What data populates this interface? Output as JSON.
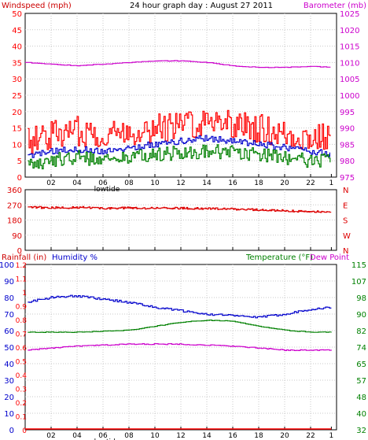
{
  "title": "24 hour graph day : August 27 2011",
  "colors": {
    "wind": "#ff0000",
    "gust_line": "#dd0000",
    "avg": "#0000cc",
    "green": "#008000",
    "baro": "#cc00cc",
    "dir": "#dd0000",
    "hum": "#0000cc",
    "temp": "#008000",
    "dew": "#cc00cc",
    "rain": "#ff0000",
    "grid": "#c8c8c8",
    "frame": "#000000"
  },
  "x_ticks": [
    "02",
    "04",
    "06",
    "08",
    "10",
    "12",
    "14",
    "16",
    "18",
    "20",
    "22",
    "1"
  ],
  "x_marker_label": "lowtide",
  "chart_data": [
    {
      "type": "line",
      "panel": "wind",
      "left_axis_label": "Windspeed (mph)",
      "right_axis_label": "Barometer (mb)",
      "left_ticks": [
        "0",
        "5",
        "10",
        "15",
        "20",
        "25",
        "30",
        "35",
        "40",
        "45",
        "50"
      ],
      "right_ticks": [
        "975",
        "980",
        "985",
        "990",
        "995",
        "1000",
        "1005",
        "1010",
        "1015",
        "1020",
        "1025"
      ],
      "ylim_left": [
        0,
        50
      ],
      "ylim_right": [
        975,
        1025
      ],
      "xlim_hours": [
        0,
        24
      ],
      "series": [
        {
          "key": "gust",
          "axis": "left",
          "x": [
            0,
            2,
            4,
            6,
            8,
            10,
            12,
            14,
            15,
            16,
            18,
            20,
            22,
            23.6
          ],
          "values": [
            11,
            13,
            14,
            13,
            14,
            15,
            16,
            17,
            18,
            16,
            15,
            13,
            12,
            12
          ]
        },
        {
          "key": "avg",
          "axis": "left",
          "x": [
            0,
            2,
            4,
            6,
            8,
            10,
            12,
            14,
            16,
            18,
            20,
            22,
            23.6
          ],
          "values": [
            6,
            8,
            8.5,
            8,
            9,
            10,
            11,
            12,
            11,
            10,
            9,
            8,
            7
          ]
        },
        {
          "key": "low",
          "axis": "left",
          "x": [
            0,
            2,
            4,
            6,
            8,
            10,
            12,
            14,
            16,
            18,
            20,
            22,
            23.6
          ],
          "values": [
            4,
            5,
            6,
            5.5,
            6,
            7,
            7.5,
            8,
            7.5,
            7,
            6,
            5,
            5
          ]
        },
        {
          "key": "baro",
          "axis": "right",
          "x": [
            0,
            2,
            4,
            6,
            8,
            10,
            12,
            14,
            16,
            18,
            20,
            22,
            23.6
          ],
          "values": [
            1010,
            1009.5,
            1009,
            1009.5,
            1010,
            1010.5,
            1010.5,
            1010,
            1009,
            1008.5,
            1008.5,
            1008.8,
            1008.5
          ]
        }
      ]
    },
    {
      "type": "line",
      "panel": "direction",
      "left_ticks": [
        "0",
        "90",
        "180",
        "270",
        "360"
      ],
      "right_ticks": [
        "N",
        "E",
        "S",
        "W",
        "N"
      ],
      "ylim_left": [
        0,
        360
      ],
      "xlim_hours": [
        0,
        24
      ],
      "series": [
        {
          "key": "dir",
          "axis": "left",
          "x": [
            0,
            2,
            4,
            6,
            8,
            10,
            12,
            14,
            16,
            18,
            20,
            22,
            23.6
          ],
          "values": [
            258,
            252,
            255,
            250,
            252,
            250,
            250,
            248,
            245,
            240,
            235,
            230,
            228
          ]
        }
      ]
    },
    {
      "type": "line",
      "panel": "weather",
      "left_axis_label": "Rainfall (in)",
      "left_axis_label2": "Humidity %",
      "right_axis_label": "Temperature (°F)",
      "right_axis_label2": "Dew Point",
      "rain_ticks": [
        "0",
        "0.1",
        "0.2",
        "0.3",
        "0.4",
        "0.5",
        "0.6",
        "0.7",
        "0.8",
        "0.9",
        "1",
        "1.1",
        "1.2"
      ],
      "humidity_ticks": [
        "0",
        "10",
        "20",
        "30",
        "40",
        "50",
        "60",
        "70",
        "80",
        "90",
        "100"
      ],
      "temp_ticks": [
        "32",
        "40",
        "48",
        "57",
        "65",
        "74",
        "82",
        "90",
        "98",
        "107",
        "115"
      ],
      "ylim_humidity": [
        0,
        100
      ],
      "ylim_temp": [
        32,
        115
      ],
      "xlim_hours": [
        0,
        24
      ],
      "series": [
        {
          "key": "hum",
          "axis": "humidity",
          "x": [
            0,
            2,
            4,
            6,
            8,
            10,
            12,
            14,
            16,
            18,
            20,
            22,
            23.6
          ],
          "values": [
            77,
            80,
            81,
            79,
            77,
            74,
            72,
            70,
            69,
            68,
            70,
            73,
            74
          ]
        },
        {
          "key": "temp",
          "axis": "temp",
          "x": [
            0,
            2,
            4,
            6,
            8,
            10,
            12,
            14,
            16,
            18,
            20,
            22,
            23.6
          ],
          "values": [
            81,
            81,
            81,
            81.5,
            82,
            84,
            86,
            87,
            86.5,
            84,
            82,
            81,
            81
          ]
        },
        {
          "key": "dew",
          "axis": "temp",
          "x": [
            0,
            2,
            4,
            6,
            8,
            10,
            12,
            14,
            16,
            18,
            20,
            22,
            23.6
          ],
          "values": [
            72,
            73,
            74,
            74.5,
            75,
            75,
            75,
            74.5,
            74,
            73,
            72,
            72,
            72
          ]
        },
        {
          "key": "rain",
          "axis": "rain",
          "x": [
            0,
            23.6
          ],
          "values": [
            0,
            0
          ]
        }
      ]
    }
  ]
}
